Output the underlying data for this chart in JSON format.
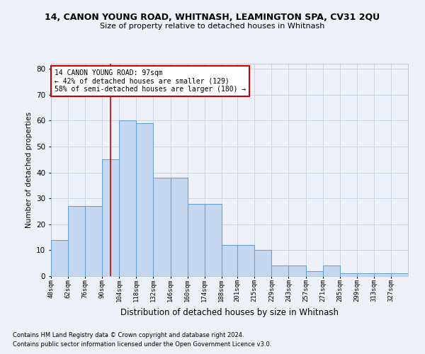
{
  "title": "14, CANON YOUNG ROAD, WHITNASH, LEAMINGTON SPA, CV31 2QU",
  "subtitle": "Size of property relative to detached houses in Whitnash",
  "xlabel": "Distribution of detached houses by size in Whitnash",
  "ylabel": "Number of detached properties",
  "bar_color": "#c5d8f0",
  "bar_edge_color": "#5b9bd5",
  "grid_color": "#c8d4e4",
  "background_color": "#eef2f8",
  "annotation_text": "14 CANON YOUNG ROAD: 97sqm\n← 42% of detached houses are smaller (129)\n58% of semi-detached houses are larger (180) →",
  "annotation_box_facecolor": "#ffffff",
  "annotation_box_edgecolor": "#cc0000",
  "vline_color": "#cc0000",
  "vline_x": 97,
  "bins": [
    48,
    62,
    76,
    90,
    104,
    118,
    132,
    146,
    160,
    174,
    188,
    201,
    215,
    229,
    243,
    257,
    271,
    285,
    299,
    313,
    327
  ],
  "bin_labels": [
    "48sqm",
    "62sqm",
    "76sqm",
    "90sqm",
    "104sqm",
    "118sqm",
    "132sqm",
    "146sqm",
    "160sqm",
    "174sqm",
    "188sqm",
    "201sqm",
    "215sqm",
    "229sqm",
    "243sqm",
    "257sqm",
    "271sqm",
    "285sqm",
    "299sqm",
    "313sqm",
    "327sqm"
  ],
  "bar_heights": [
    14,
    27,
    27,
    45,
    60,
    59,
    38,
    38,
    28,
    28,
    12,
    12,
    10,
    4,
    4,
    2,
    4,
    1,
    1,
    1,
    1
  ],
  "ylim": [
    0,
    82
  ],
  "yticks": [
    0,
    10,
    20,
    30,
    40,
    50,
    60,
    70,
    80
  ],
  "footnote1": "Contains HM Land Registry data © Crown copyright and database right 2024.",
  "footnote2": "Contains public sector information licensed under the Open Government Licence v3.0."
}
